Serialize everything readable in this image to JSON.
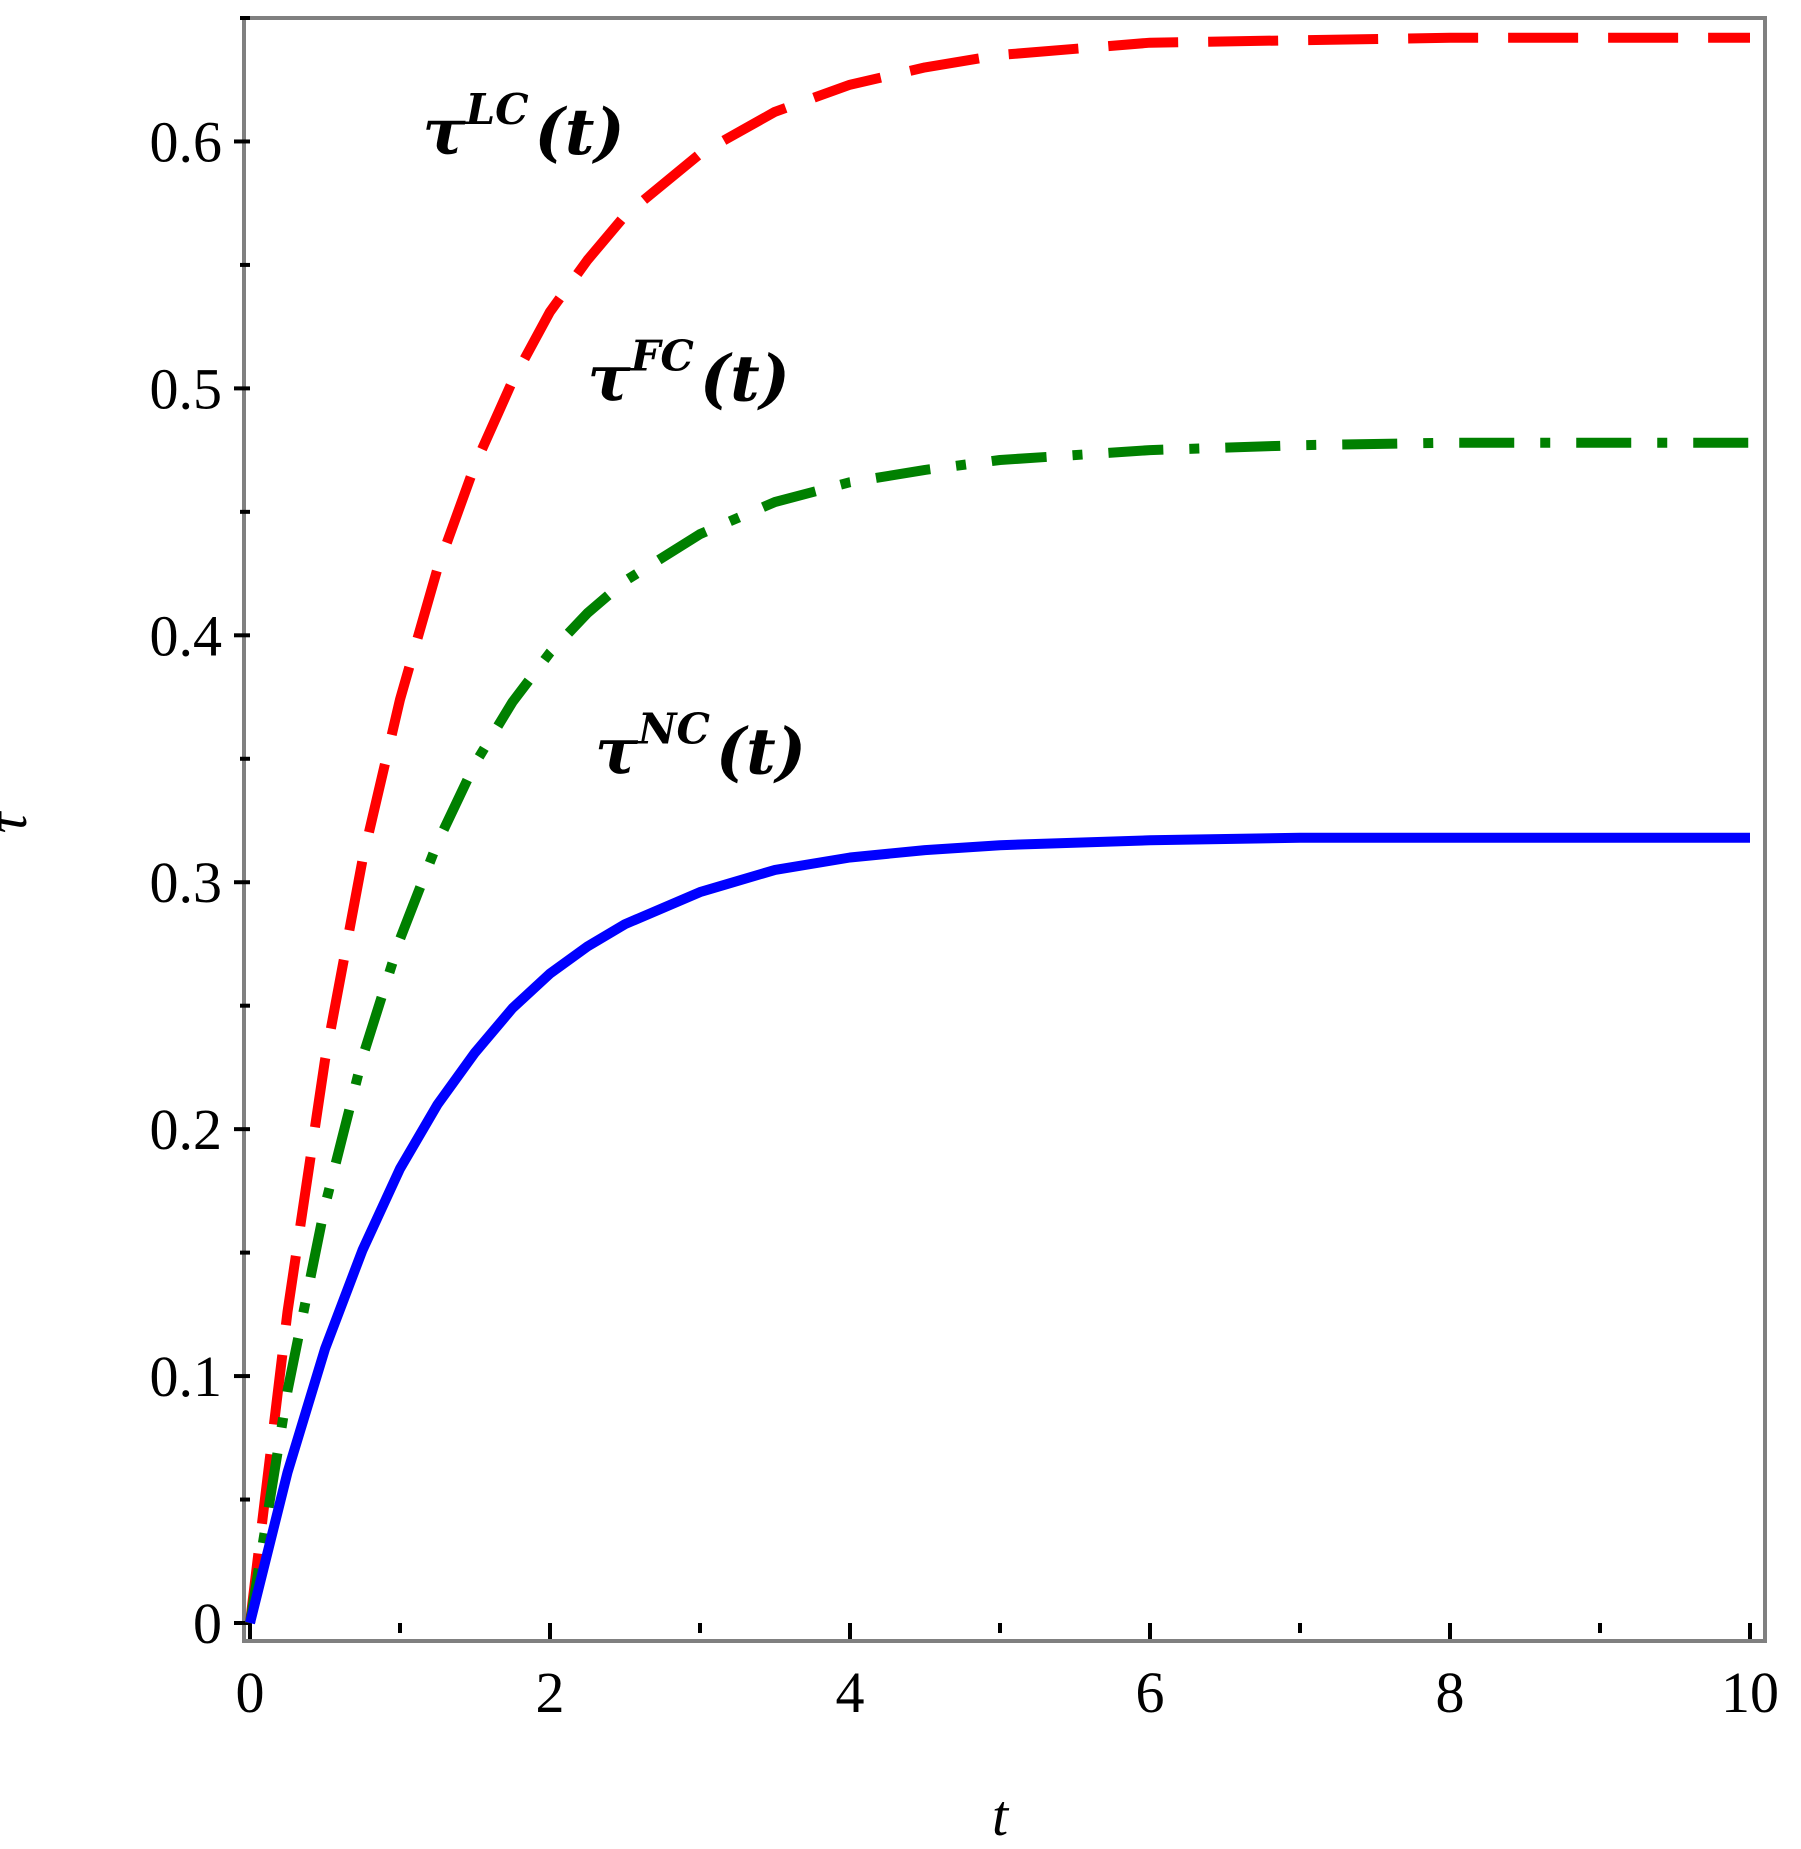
{
  "chart_data": {
    "type": "line",
    "xlabel": "t",
    "ylabel": "τ",
    "xlim": [
      0,
      10
    ],
    "ylim": [
      0,
      0.65
    ],
    "xticks": [
      0,
      2,
      4,
      6,
      8,
      10
    ],
    "yticks": [
      0,
      0.1,
      0.2,
      0.3,
      0.4,
      0.5,
      0.6
    ],
    "xtick_labels": [
      "0",
      "2",
      "4",
      "6",
      "8",
      "10"
    ],
    "ytick_labels": [
      "0",
      "0.1",
      "0.2",
      "0.3",
      "0.4",
      "0.5",
      "0.6"
    ],
    "grid": false,
    "legend": "none",
    "series": [
      {
        "name": "τ^LC(t)",
        "label_base": "τ",
        "label_sup": "LC",
        "label_arg": "(t)",
        "color": "#ff0000",
        "style": "dash",
        "x": [
          0,
          0.25,
          0.5,
          0.75,
          1,
          1.25,
          1.5,
          1.75,
          2,
          2.25,
          2.5,
          3,
          3.5,
          4,
          4.5,
          5,
          6,
          7,
          8,
          9,
          10
        ],
        "y": [
          0,
          0.126,
          0.228,
          0.309,
          0.374,
          0.427,
          0.469,
          0.503,
          0.531,
          0.552,
          0.57,
          0.595,
          0.612,
          0.623,
          0.63,
          0.635,
          0.64,
          0.641,
          0.642,
          0.642,
          0.642
        ]
      },
      {
        "name": "τ^FC(t)",
        "label_base": "τ",
        "label_sup": "FC",
        "label_arg": "(t)",
        "color": "#008000",
        "style": "dashdot",
        "x": [
          0,
          0.25,
          0.5,
          0.75,
          1,
          1.25,
          1.5,
          1.75,
          2,
          2.25,
          2.5,
          3,
          3.5,
          4,
          4.5,
          5,
          6,
          7,
          8,
          9,
          10
        ],
        "y": [
          0,
          0.094,
          0.169,
          0.229,
          0.277,
          0.316,
          0.348,
          0.373,
          0.393,
          0.409,
          0.422,
          0.441,
          0.454,
          0.462,
          0.467,
          0.471,
          0.475,
          0.477,
          0.478,
          0.478,
          0.478
        ]
      },
      {
        "name": "τ^NC(t)",
        "label_base": "τ",
        "label_sup": "NC",
        "label_arg": "(t)",
        "color": "#0000ff",
        "style": "solid",
        "x": [
          0,
          0.25,
          0.5,
          0.75,
          1,
          1.25,
          1.5,
          1.75,
          2,
          2.25,
          2.5,
          3,
          3.5,
          4,
          4.5,
          5,
          6,
          7,
          8,
          9,
          10
        ],
        "y": [
          0,
          0.061,
          0.111,
          0.151,
          0.184,
          0.21,
          0.231,
          0.249,
          0.263,
          0.274,
          0.283,
          0.296,
          0.305,
          0.31,
          0.313,
          0.315,
          0.317,
          0.318,
          0.318,
          0.318,
          0.318
        ]
      }
    ],
    "annotations": [
      {
        "series_index": 0,
        "x": 1.15,
        "y": 0.595
      },
      {
        "series_index": 1,
        "x": 2.25,
        "y": 0.495
      },
      {
        "series_index": 2,
        "x": 2.3,
        "y": 0.344
      }
    ]
  }
}
